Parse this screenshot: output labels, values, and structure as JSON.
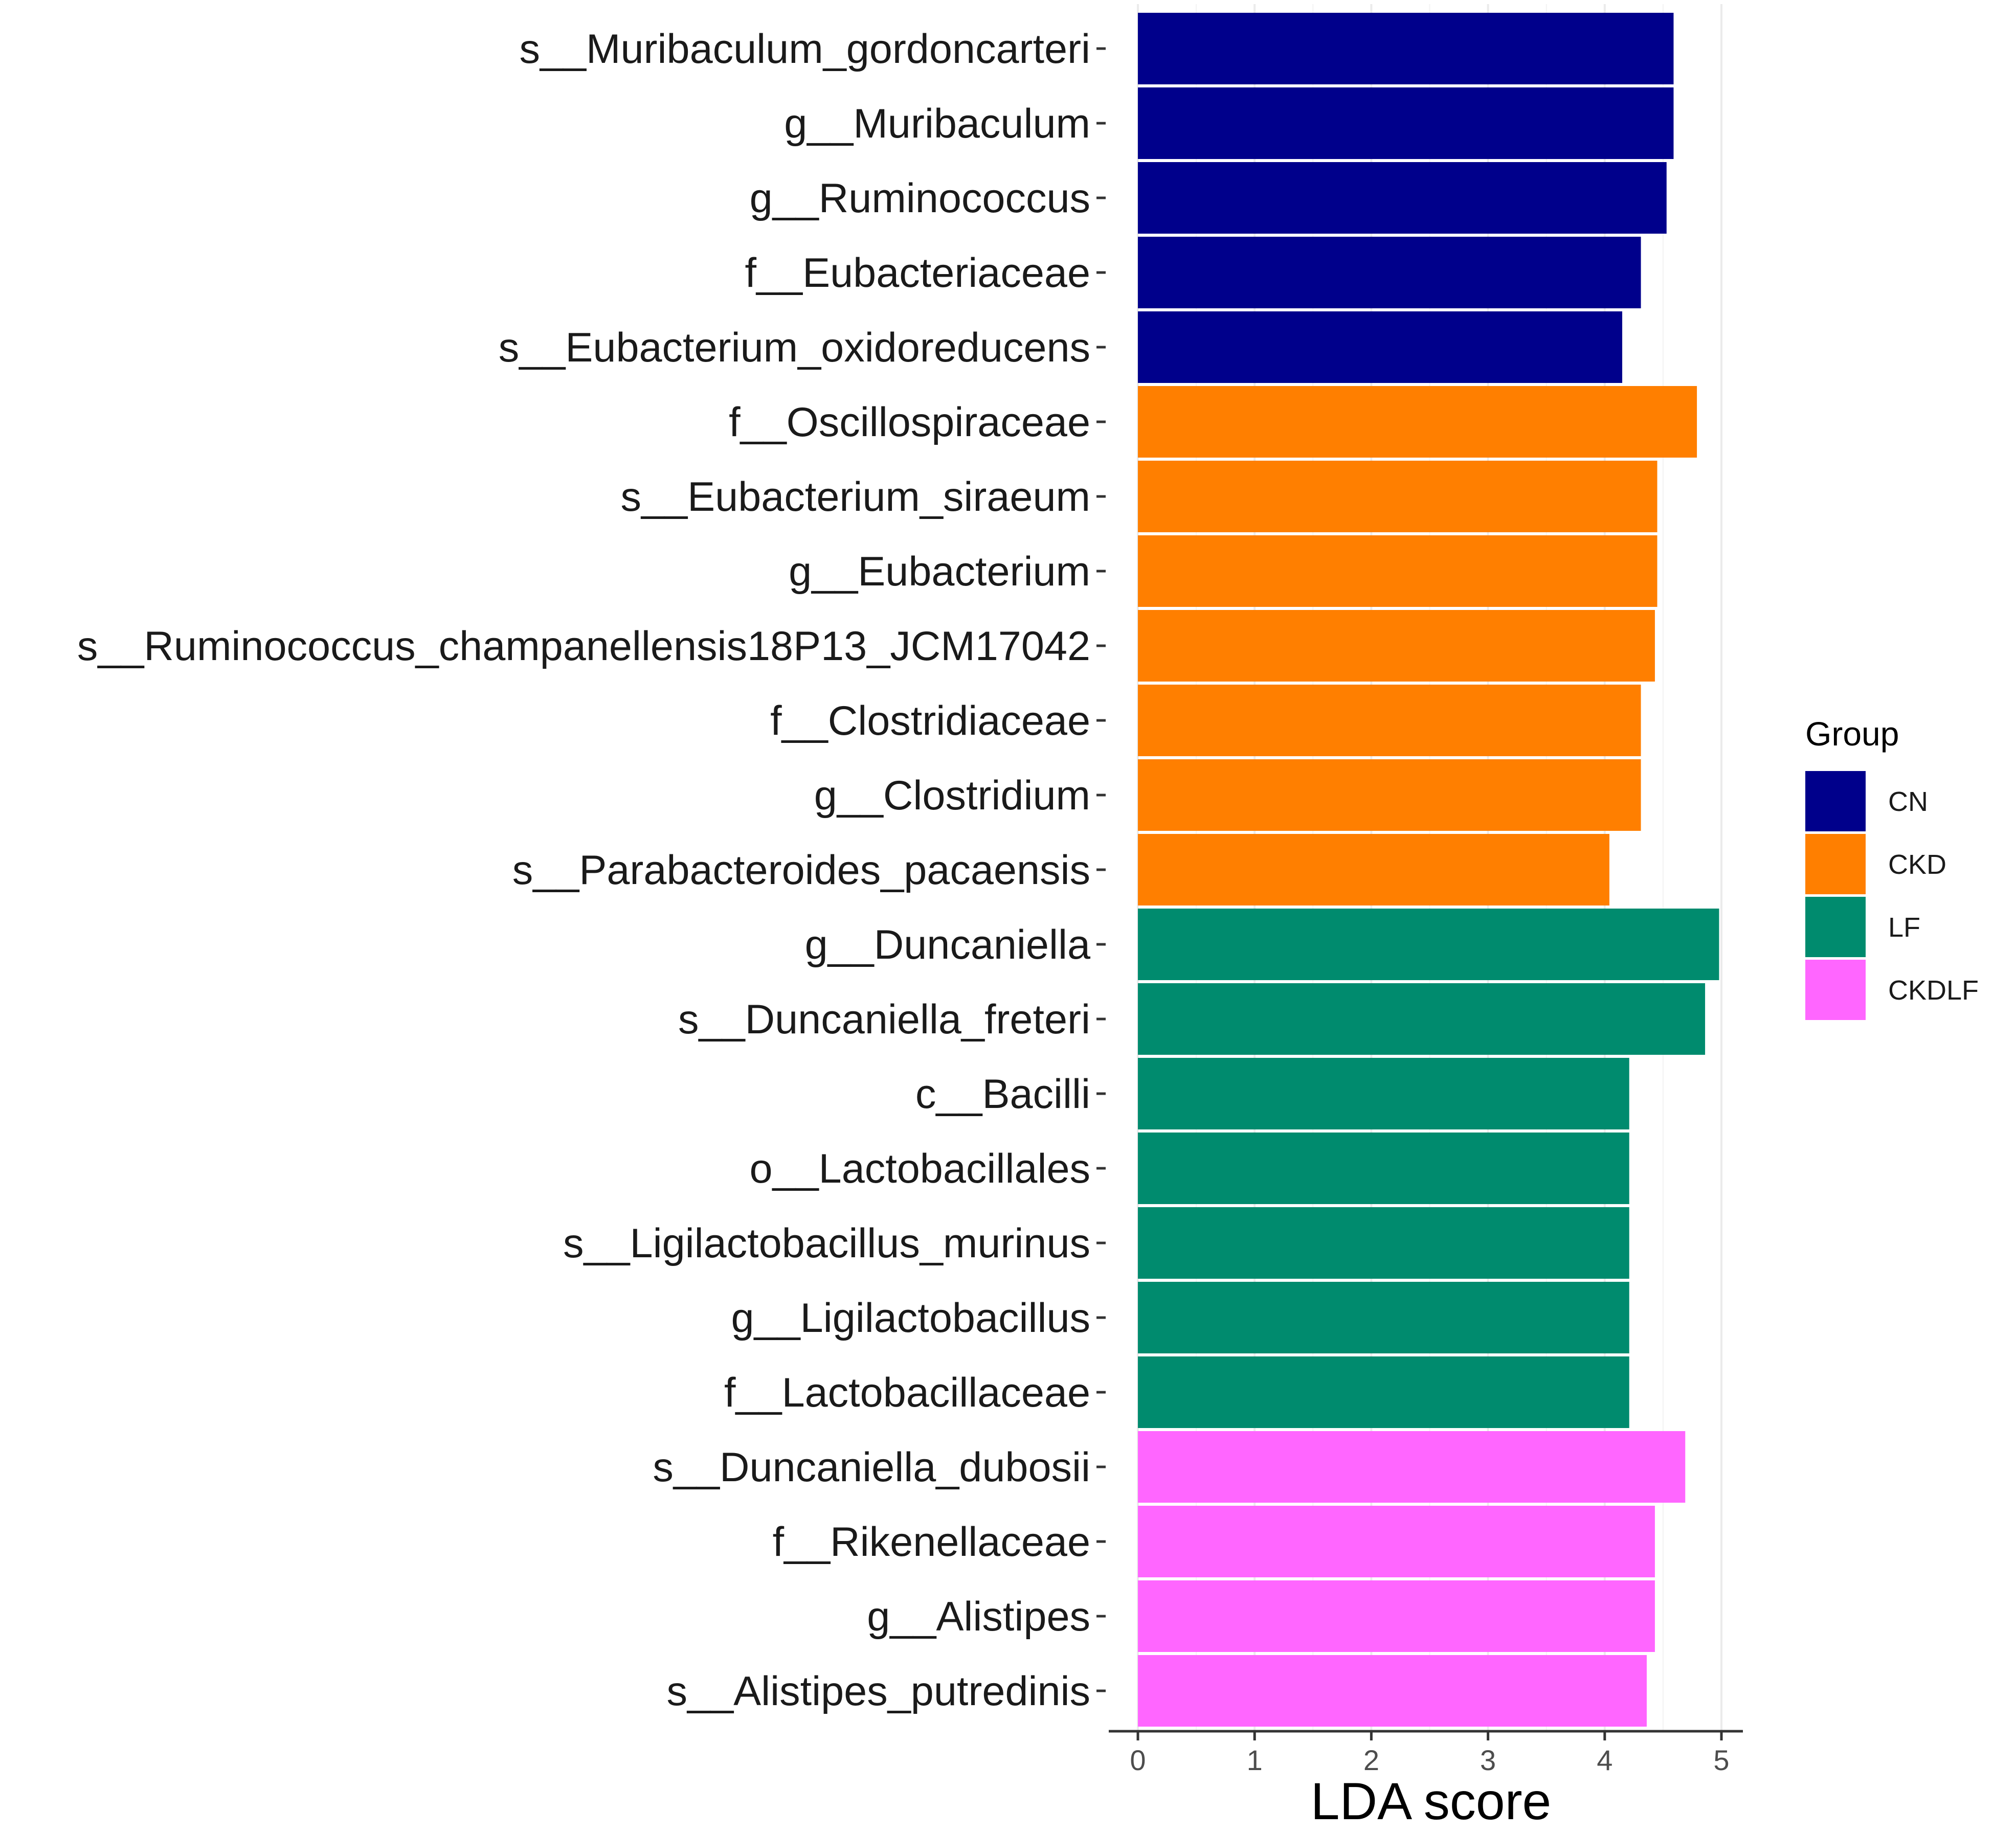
{
  "chart_data": {
    "type": "bar",
    "orientation": "horizontal",
    "title": "",
    "xlabel": "LDA score",
    "ylabel": "",
    "xlim": [
      -0.25,
      5.2
    ],
    "xticks": [
      0,
      1,
      2,
      3,
      4,
      5
    ],
    "grid": true,
    "legend": {
      "title": "Group",
      "position": "right",
      "entries": [
        {
          "name": "CN",
          "color": "#00008B"
        },
        {
          "name": "CKD",
          "color": "#FF7F00"
        },
        {
          "name": "LF",
          "color": "#008B6E"
        },
        {
          "name": "CKDLF",
          "color": "#FF66FF"
        }
      ]
    },
    "bars": [
      {
        "label": "s__Muribaculum_gordoncarteri",
        "value": 4.59,
        "group": "CN"
      },
      {
        "label": "g__Muribaculum",
        "value": 4.59,
        "group": "CN"
      },
      {
        "label": "g__Ruminococcus",
        "value": 4.53,
        "group": "CN"
      },
      {
        "label": "f__Eubacteriaceae",
        "value": 4.31,
        "group": "CN"
      },
      {
        "label": "s__Eubacterium_oxidoreducens",
        "value": 4.15,
        "group": "CN"
      },
      {
        "label": "f__Oscillospiraceae",
        "value": 4.79,
        "group": "CKD"
      },
      {
        "label": "s__Eubacterium_siraeum",
        "value": 4.45,
        "group": "CKD"
      },
      {
        "label": "g__Eubacterium",
        "value": 4.45,
        "group": "CKD"
      },
      {
        "label": "s__Ruminococcus_champanellensis18P13_JCM17042",
        "value": 4.43,
        "group": "CKD"
      },
      {
        "label": "f__Clostridiaceae",
        "value": 4.31,
        "group": "CKD"
      },
      {
        "label": "g__Clostridium",
        "value": 4.31,
        "group": "CKD"
      },
      {
        "label": "s__Parabacteroides_pacaensis",
        "value": 4.04,
        "group": "CKD"
      },
      {
        "label": "g__Duncaniella",
        "value": 4.98,
        "group": "LF"
      },
      {
        "label": "s__Duncaniella_freteri",
        "value": 4.86,
        "group": "LF"
      },
      {
        "label": "c__Bacilli",
        "value": 4.21,
        "group": "LF"
      },
      {
        "label": "o__Lactobacillales",
        "value": 4.21,
        "group": "LF"
      },
      {
        "label": "s__Ligilactobacillus_murinus",
        "value": 4.21,
        "group": "LF"
      },
      {
        "label": "g__Ligilactobacillus",
        "value": 4.21,
        "group": "LF"
      },
      {
        "label": "f__Lactobacillaceae",
        "value": 4.21,
        "group": "LF"
      },
      {
        "label": "s__Duncaniella_dubosii",
        "value": 4.69,
        "group": "CKDLF"
      },
      {
        "label": "f__Rikenellaceae",
        "value": 4.43,
        "group": "CKDLF"
      },
      {
        "label": "g__Alistipes",
        "value": 4.43,
        "group": "CKDLF"
      },
      {
        "label": "s__Alistipes_putredinis",
        "value": 4.36,
        "group": "CKDLF"
      }
    ]
  }
}
